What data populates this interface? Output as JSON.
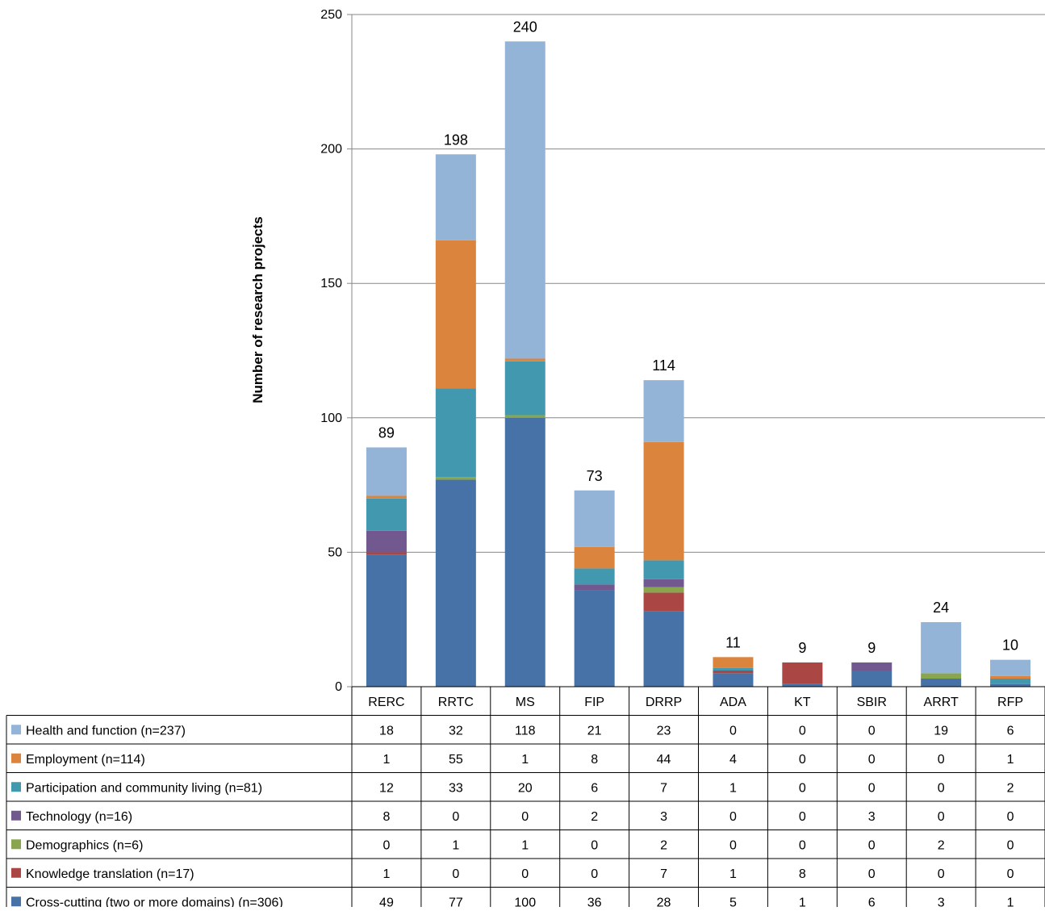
{
  "chart_data": {
    "type": "bar",
    "stacked": true,
    "ylabel": "Number of research projects",
    "xlabel": "",
    "title": "",
    "ylim": [
      0,
      250
    ],
    "yticks": [
      0,
      50,
      100,
      150,
      200,
      250
    ],
    "grid": true,
    "categories": [
      "RERC",
      "RRTC",
      "MS",
      "FIP",
      "DRRP",
      "ADA",
      "KT",
      "SBIR",
      "ARRT",
      "RFP"
    ],
    "totals": [
      89,
      198,
      240,
      73,
      114,
      11,
      9,
      9,
      24,
      10
    ],
    "series": [
      {
        "name": "Cross-cutting (two or more domains) (n=306)",
        "color": "#4672A8",
        "values": [
          49,
          77,
          100,
          36,
          28,
          5,
          1,
          6,
          3,
          1
        ]
      },
      {
        "name": "Knowledge translation (n=17)",
        "color": "#AA4643",
        "values": [
          1,
          0,
          0,
          0,
          7,
          1,
          8,
          0,
          0,
          0
        ]
      },
      {
        "name": "Demographics (n=6)",
        "color": "#89A54E",
        "values": [
          0,
          1,
          1,
          0,
          2,
          0,
          0,
          0,
          2,
          0
        ]
      },
      {
        "name": "Technology (n=16)",
        "color": "#71588F",
        "values": [
          8,
          0,
          0,
          2,
          3,
          0,
          0,
          3,
          0,
          0
        ]
      },
      {
        "name": "Participation and community living (n=81)",
        "color": "#4198AF",
        "values": [
          12,
          33,
          20,
          6,
          7,
          1,
          0,
          0,
          0,
          2
        ]
      },
      {
        "name": "Employment (n=114)",
        "color": "#DB843D",
        "values": [
          1,
          55,
          1,
          8,
          44,
          4,
          0,
          0,
          0,
          1
        ]
      },
      {
        "name": "Health and function (n=237)",
        "color": "#93B3D7",
        "values": [
          18,
          32,
          118,
          21,
          23,
          0,
          0,
          0,
          19,
          6
        ]
      }
    ],
    "table_row_order": [
      "Health and function (n=237)",
      "Employment (n=114)",
      "Participation and community living (n=81)",
      "Technology (n=16)",
      "Demographics (n=6)",
      "Knowledge translation (n=17)",
      "Cross-cutting (two or more domains) (n=306)"
    ]
  }
}
